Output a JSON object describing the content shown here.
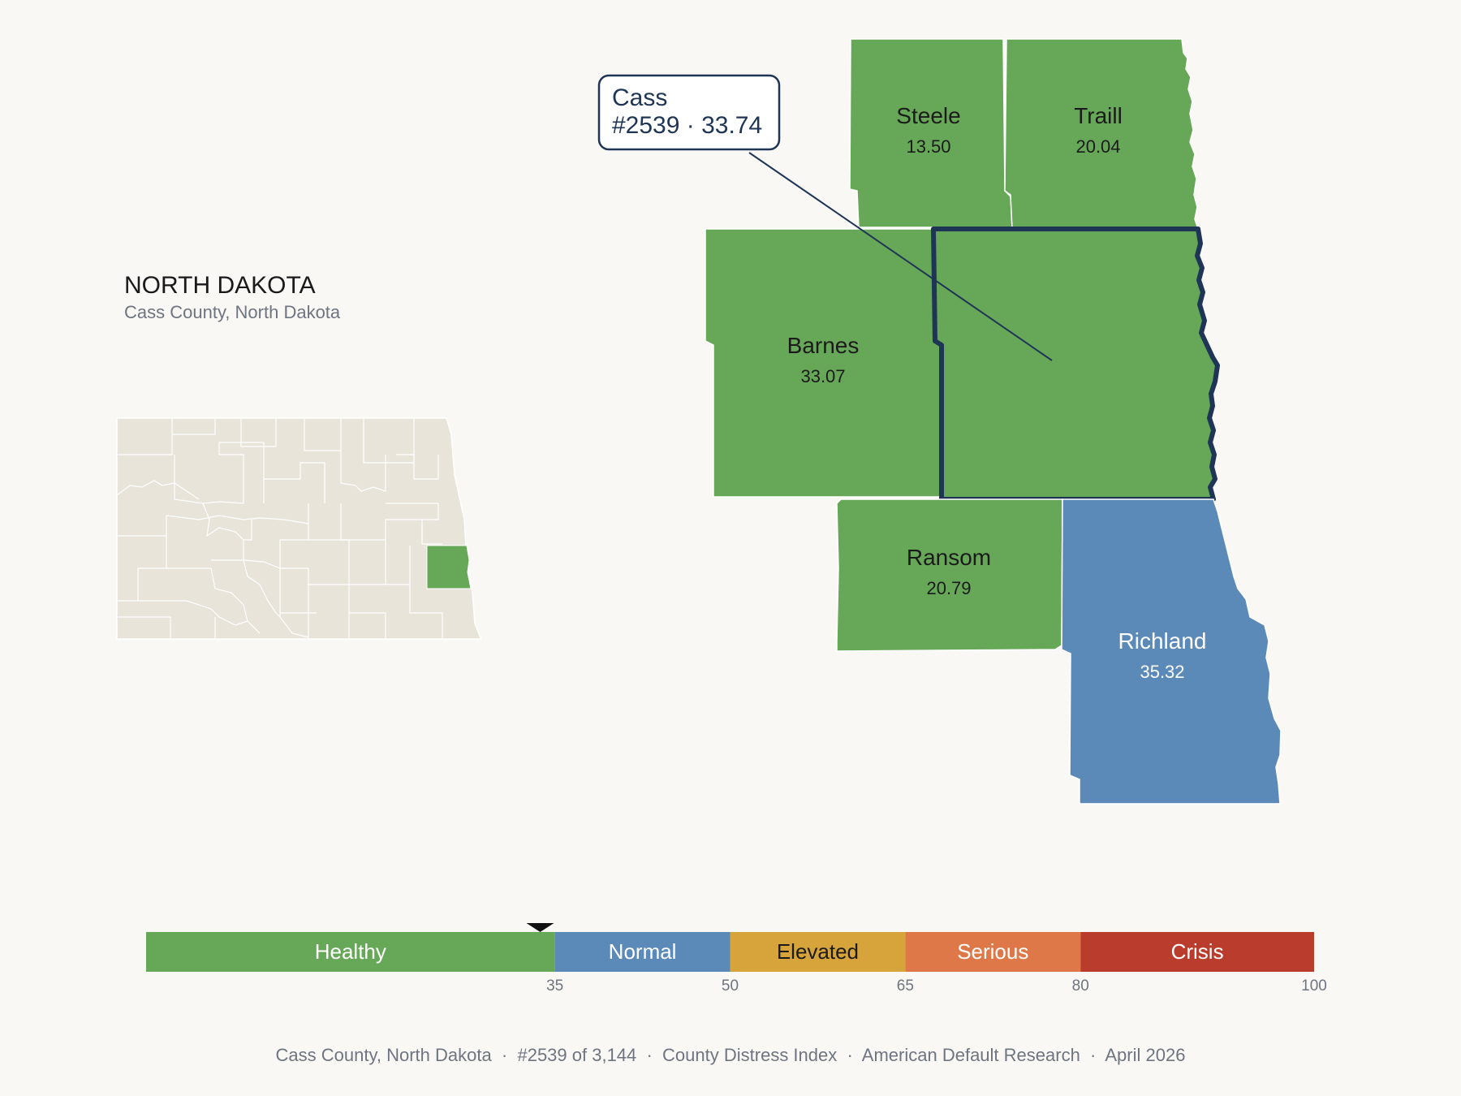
{
  "state": {
    "title": "NORTH DAKOTA",
    "subtitle": "Cass County, North Dakota"
  },
  "callout": {
    "line1": "Cass",
    "line2": "#2539 · 33.74"
  },
  "counties": {
    "steele": {
      "name": "Steele",
      "score": "13.50",
      "category": "Healthy"
    },
    "traill": {
      "name": "Traill",
      "score": "20.04",
      "category": "Healthy"
    },
    "barnes": {
      "name": "Barnes",
      "score": "33.07",
      "category": "Healthy"
    },
    "ransom": {
      "name": "Ransom",
      "score": "20.79",
      "category": "Healthy"
    },
    "richland": {
      "name": "Richland",
      "score": "35.32",
      "category": "Normal"
    },
    "cass": {
      "name": "Cass",
      "score": "33.74",
      "category": "Healthy",
      "selected": true
    }
  },
  "legend": {
    "min": 0,
    "max": 100,
    "marker_value": 33.74,
    "bands": [
      {
        "label": "Healthy",
        "from": 0,
        "to": 35,
        "color": "#67a758",
        "text_color": "#ffffff"
      },
      {
        "label": "Normal",
        "from": 35,
        "to": 50,
        "color": "#5b8ab9",
        "text_color": "#ffffff"
      },
      {
        "label": "Elevated",
        "from": 50,
        "to": 65,
        "color": "#d6a43a",
        "text_color": "#1b1b1b"
      },
      {
        "label": "Serious",
        "from": 65,
        "to": 80,
        "color": "#de7848",
        "text_color": "#ffffff"
      },
      {
        "label": "Crisis",
        "from": 80,
        "to": 100,
        "color": "#b93c2c",
        "text_color": "#ffffff"
      }
    ],
    "ticks": [
      "35",
      "50",
      "65",
      "80",
      "100"
    ]
  },
  "footer": "Cass County, North Dakota  ·  #2539 of 3,144  ·  County Distress Index  ·  American Default Research  ·  April 2026",
  "colors": {
    "healthy": "#67a758",
    "normal": "#5b8ab9",
    "selected_outline": "#1f3556",
    "inset_fill": "#e8e4da",
    "background": "#f9f8f5"
  }
}
